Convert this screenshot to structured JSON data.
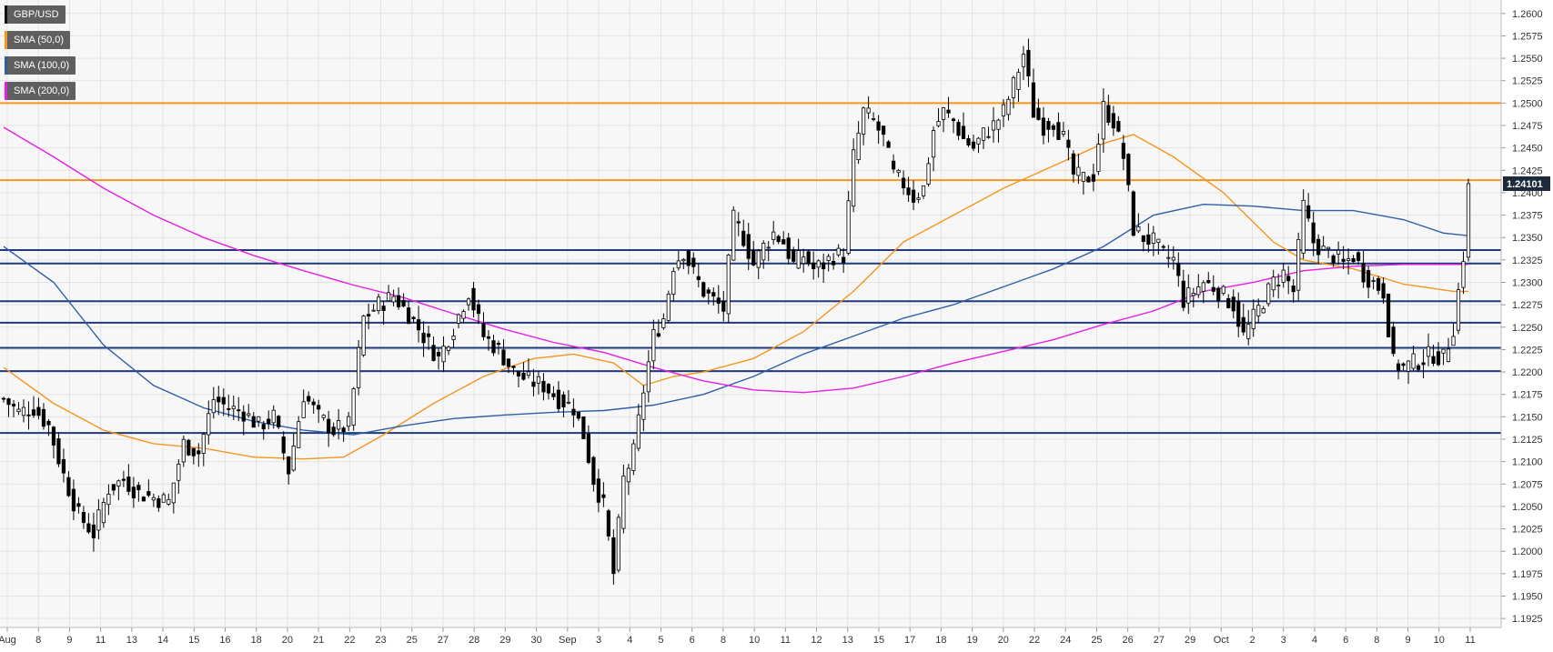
{
  "legend": {
    "symbol": "GBP/USD",
    "sma50": "SMA (50,0)",
    "sma100": "SMA (100,0)",
    "sma200": "SMA (200,0)"
  },
  "colors": {
    "background": "#f7f7f7",
    "grid": "#e3e3e3",
    "candle_up": "#ffffff",
    "candle_down": "#000000",
    "sma50": "#f5961e",
    "sma100": "#2d5fa8",
    "sma200": "#e61ee6",
    "resistance": "#f5961e",
    "support": "#1f3a7d",
    "price_tag": "#1e2a3a"
  },
  "chart_data": {
    "type": "candlestick",
    "title": "",
    "xlabel": "",
    "ylabel": "",
    "ylim": [
      1.1915,
      1.2615
    ],
    "y_ticks": [
      "1.2600",
      "1.2575",
      "1.2550",
      "1.2525",
      "1.2500",
      "1.2475",
      "1.2450",
      "1.2425",
      "1.2400",
      "1.2375",
      "1.2350",
      "1.2325",
      "1.2300",
      "1.2275",
      "1.2250",
      "1.2225",
      "1.2200",
      "1.2175",
      "1.2150",
      "1.2125",
      "1.2100",
      "1.2075",
      "1.2050",
      "1.2025",
      "1.2000",
      "1.1975",
      "1.1950",
      "1.1925"
    ],
    "x_ticks": [
      "Aug",
      "8",
      "9",
      "11",
      "13",
      "14",
      "15",
      "16",
      "18",
      "20",
      "21",
      "22",
      "23",
      "25",
      "27",
      "28",
      "29",
      "30",
      "Sep",
      "3",
      "4",
      "5",
      "6",
      "8",
      "10",
      "11",
      "12",
      "13",
      "15",
      "17",
      "18",
      "19",
      "20",
      "22",
      "24",
      "25",
      "26",
      "27",
      "29",
      "Oct",
      "2",
      "3",
      "4",
      "6",
      "8",
      "9",
      "10",
      "11"
    ],
    "last_price": "1.24101",
    "grid": true,
    "horizontal_levels": {
      "resistance": [
        1.25,
        1.2414
      ],
      "support": [
        1.2336,
        1.2321,
        1.2279,
        1.2255,
        1.2227,
        1.2201,
        1.2132
      ]
    },
    "price_path": [
      [
        0,
        1.217
      ],
      [
        3,
        1.2155
      ],
      [
        6,
        1.216
      ],
      [
        9,
        1.214
      ],
      [
        12,
        1.2085
      ],
      [
        15,
        1.204
      ],
      [
        18,
        1.202
      ],
      [
        21,
        1.207
      ],
      [
        24,
        1.208
      ],
      [
        27,
        1.2065
      ],
      [
        30,
        1.206
      ],
      [
        33,
        1.2055
      ],
      [
        36,
        1.212
      ],
      [
        39,
        1.211
      ],
      [
        42,
        1.217
      ],
      [
        45,
        1.216
      ],
      [
        48,
        1.2155
      ],
      [
        51,
        1.214
      ],
      [
        54,
        1.215
      ],
      [
        57,
        1.209
      ],
      [
        60,
        1.2175
      ],
      [
        63,
        1.215
      ],
      [
        66,
        1.2135
      ],
      [
        69,
        1.214
      ],
      [
        72,
        1.226
      ],
      [
        75,
        1.2275
      ],
      [
        78,
        1.2285
      ],
      [
        81,
        1.2265
      ],
      [
        84,
        1.224
      ],
      [
        87,
        1.2215
      ],
      [
        90,
        1.225
      ],
      [
        93,
        1.229
      ],
      [
        96,
        1.224
      ],
      [
        99,
        1.2225
      ],
      [
        102,
        1.22
      ],
      [
        105,
        1.219
      ],
      [
        108,
        1.2185
      ],
      [
        111,
        1.217
      ],
      [
        114,
        1.216
      ],
      [
        116,
        1.213
      ],
      [
        118,
        1.208
      ],
      [
        120,
        1.205
      ],
      [
        122,
        1.1975
      ],
      [
        124,
        1.208
      ],
      [
        126,
        1.211
      ],
      [
        128,
        1.218
      ],
      [
        130,
        1.224
      ],
      [
        132,
        1.226
      ],
      [
        134,
        1.232
      ],
      [
        136,
        1.2335
      ],
      [
        138,
        1.231
      ],
      [
        140,
        1.229
      ],
      [
        142,
        1.228
      ],
      [
        144,
        1.227
      ],
      [
        146,
        1.237
      ],
      [
        148,
        1.235
      ],
      [
        150,
        1.232
      ],
      [
        152,
        1.234
      ],
      [
        154,
        1.2355
      ],
      [
        156,
        1.2345
      ],
      [
        158,
        1.232
      ],
      [
        160,
        1.233
      ],
      [
        162,
        1.2315
      ],
      [
        164,
        1.232
      ],
      [
        166,
        1.233
      ],
      [
        168,
        1.233
      ],
      [
        170,
        1.244
      ],
      [
        172,
        1.249
      ],
      [
        174,
        1.248
      ],
      [
        176,
        1.246
      ],
      [
        178,
        1.242
      ],
      [
        180,
        1.241
      ],
      [
        182,
        1.2395
      ],
      [
        184,
        1.2405
      ],
      [
        186,
        1.247
      ],
      [
        188,
        1.249
      ],
      [
        190,
        1.248
      ],
      [
        192,
        1.246
      ],
      [
        194,
        1.245
      ],
      [
        196,
        1.2465
      ],
      [
        198,
        1.2475
      ],
      [
        200,
        1.249
      ],
      [
        202,
        1.252
      ],
      [
        204,
        1.2555
      ],
      [
        206,
        1.249
      ],
      [
        208,
        1.2475
      ],
      [
        210,
        1.248
      ],
      [
        212,
        1.246
      ],
      [
        214,
        1.242
      ],
      [
        216,
        1.2415
      ],
      [
        218,
        1.242
      ],
      [
        220,
        1.2495
      ],
      [
        222,
        1.248
      ],
      [
        224,
        1.244
      ],
      [
        226,
        1.236
      ],
      [
        228,
        1.235
      ],
      [
        230,
        1.2345
      ],
      [
        232,
        1.233
      ],
      [
        234,
        1.2325
      ],
      [
        236,
        1.228
      ],
      [
        238,
        1.229
      ],
      [
        240,
        1.23
      ],
      [
        242,
        1.2295
      ],
      [
        244,
        1.2285
      ],
      [
        246,
        1.2275
      ],
      [
        248,
        1.224
      ],
      [
        250,
        1.226
      ],
      [
        252,
        1.228
      ],
      [
        254,
        1.23
      ],
      [
        256,
        1.231
      ],
      [
        258,
        1.229
      ],
      [
        260,
        1.2385
      ],
      [
        262,
        1.2345
      ],
      [
        264,
        1.2335
      ],
      [
        266,
        1.233
      ],
      [
        268,
        1.232
      ],
      [
        270,
        1.233
      ],
      [
        272,
        1.231
      ],
      [
        274,
        1.23
      ],
      [
        276,
        1.229
      ],
      [
        278,
        1.221
      ],
      [
        280,
        1.2205
      ],
      [
        282,
        1.221
      ],
      [
        284,
        1.2215
      ],
      [
        286,
        1.222
      ],
      [
        288,
        1.2215
      ],
      [
        290,
        1.225
      ],
      [
        292,
        1.233
      ],
      [
        293,
        1.241
      ]
    ],
    "series": [
      {
        "name": "SMA (50,0)",
        "role": "sma50",
        "values": [
          [
            0,
            1.2205
          ],
          [
            10,
            1.2165
          ],
          [
            20,
            1.2135
          ],
          [
            30,
            1.212
          ],
          [
            40,
            1.2115
          ],
          [
            50,
            1.2105
          ],
          [
            60,
            1.2103
          ],
          [
            68,
            1.2105
          ],
          [
            76,
            1.213
          ],
          [
            86,
            1.2165
          ],
          [
            96,
            1.2195
          ],
          [
            106,
            1.2215
          ],
          [
            114,
            1.222
          ],
          [
            122,
            1.221
          ],
          [
            128,
            1.2185
          ],
          [
            134,
            1.2195
          ],
          [
            140,
            1.22
          ],
          [
            150,
            1.2215
          ],
          [
            160,
            1.2245
          ],
          [
            170,
            1.229
          ],
          [
            180,
            1.2345
          ],
          [
            190,
            1.2375
          ],
          [
            200,
            1.2405
          ],
          [
            210,
            1.243
          ],
          [
            220,
            1.2455
          ],
          [
            226,
            1.2465
          ],
          [
            234,
            1.244
          ],
          [
            244,
            1.24
          ],
          [
            254,
            1.2345
          ],
          [
            260,
            1.2325
          ],
          [
            270,
            1.2315
          ],
          [
            280,
            1.2298
          ],
          [
            290,
            1.229
          ],
          [
            293,
            1.229
          ]
        ]
      },
      {
        "name": "SMA (100,0)",
        "role": "sma100",
        "values": [
          [
            0,
            1.234
          ],
          [
            10,
            1.23
          ],
          [
            20,
            1.223
          ],
          [
            30,
            1.2185
          ],
          [
            40,
            1.216
          ],
          [
            50,
            1.2145
          ],
          [
            60,
            1.2135
          ],
          [
            70,
            1.213
          ],
          [
            80,
            1.214
          ],
          [
            90,
            1.2148
          ],
          [
            100,
            1.2152
          ],
          [
            110,
            1.2155
          ],
          [
            120,
            1.2157
          ],
          [
            130,
            1.2163
          ],
          [
            140,
            1.2175
          ],
          [
            150,
            1.2195
          ],
          [
            160,
            1.222
          ],
          [
            170,
            1.224
          ],
          [
            180,
            1.226
          ],
          [
            190,
            1.2275
          ],
          [
            200,
            1.2295
          ],
          [
            210,
            1.2315
          ],
          [
            220,
            1.234
          ],
          [
            230,
            1.2375
          ],
          [
            240,
            1.2387
          ],
          [
            250,
            1.2385
          ],
          [
            260,
            1.238
          ],
          [
            270,
            1.238
          ],
          [
            280,
            1.237
          ],
          [
            288,
            1.2355
          ],
          [
            293,
            1.2352
          ]
        ]
      },
      {
        "name": "SMA (200,0)",
        "role": "sma200",
        "values": [
          [
            0,
            1.2473
          ],
          [
            10,
            1.244
          ],
          [
            20,
            1.2405
          ],
          [
            30,
            1.2375
          ],
          [
            40,
            1.235
          ],
          [
            50,
            1.233
          ],
          [
            60,
            1.2313
          ],
          [
            70,
            1.2297
          ],
          [
            80,
            1.2283
          ],
          [
            90,
            1.2265
          ],
          [
            100,
            1.2248
          ],
          [
            110,
            1.2233
          ],
          [
            120,
            1.2222
          ],
          [
            130,
            1.2205
          ],
          [
            140,
            1.219
          ],
          [
            150,
            1.218
          ],
          [
            160,
            1.2177
          ],
          [
            170,
            1.2182
          ],
          [
            180,
            1.2195
          ],
          [
            190,
            1.221
          ],
          [
            200,
            1.2223
          ],
          [
            210,
            1.2236
          ],
          [
            220,
            1.2253
          ],
          [
            230,
            1.2268
          ],
          [
            240,
            1.229
          ],
          [
            250,
            1.23
          ],
          [
            260,
            1.2313
          ],
          [
            270,
            1.2318
          ],
          [
            280,
            1.232
          ],
          [
            293,
            1.232
          ]
        ]
      }
    ]
  }
}
